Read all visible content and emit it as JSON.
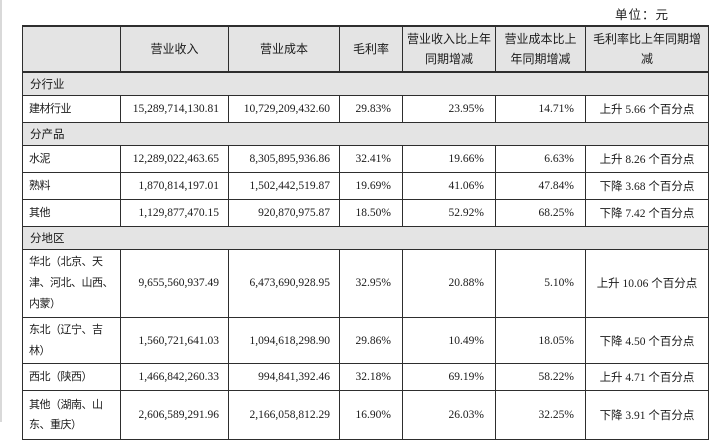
{
  "unit_label": "单位：元",
  "table": {
    "columns": [
      {
        "key": "label",
        "label": ""
      },
      {
        "key": "revenue",
        "label": "营业收入"
      },
      {
        "key": "cost",
        "label": "营业成本"
      },
      {
        "key": "margin",
        "label": "毛利率"
      },
      {
        "key": "revenue_yoy",
        "label": "营业收入比上年同期增减"
      },
      {
        "key": "cost_yoy",
        "label": "营业成本比上年同期增减"
      },
      {
        "key": "margin_yoy",
        "label": "毛利率比上年同期增减"
      }
    ],
    "rows": [
      {
        "type": "section",
        "label": "分行业"
      },
      {
        "type": "data",
        "label": "建材行业",
        "values": [
          "15,289,714,130.81",
          "10,729,209,432.60",
          "29.83%",
          "23.95%",
          "14.71%",
          "上升 5.66 个百分点"
        ]
      },
      {
        "type": "section",
        "label": "分产品"
      },
      {
        "type": "data",
        "label": "水泥",
        "values": [
          "12,289,022,463.65",
          "8,305,895,936.86",
          "32.41%",
          "19.66%",
          "6.63%",
          "上升 8.26 个百分点"
        ]
      },
      {
        "type": "data",
        "label": "熟料",
        "values": [
          "1,870,814,197.01",
          "1,502,442,519.87",
          "19.69%",
          "41.06%",
          "47.84%",
          "下降 3.68 个百分点"
        ]
      },
      {
        "type": "data",
        "label": "其他",
        "values": [
          "1,129,877,470.15",
          "920,870,975.87",
          "18.50%",
          "52.92%",
          "68.25%",
          "下降 7.42 个百分点"
        ]
      },
      {
        "type": "section",
        "label": "分地区"
      },
      {
        "type": "data",
        "tall": true,
        "label": "华北（北京、天津、河北、山西、内蒙）",
        "values": [
          "9,655,560,937.49",
          "6,473,690,928.95",
          "32.95%",
          "20.88%",
          "5.10%",
          "上升 10.06 个百分点"
        ]
      },
      {
        "type": "data",
        "label": "东北（辽宁、吉林）",
        "values": [
          "1,560,721,641.03",
          "1,094,618,298.90",
          "29.86%",
          "10.49%",
          "18.05%",
          "下降 4.50 个百分点"
        ]
      },
      {
        "type": "data",
        "label": "西北（陕西）",
        "values": [
          "1,466,842,260.33",
          "994,841,392.46",
          "32.18%",
          "69.19%",
          "58.22%",
          "上升 4.71 个百分点"
        ]
      },
      {
        "type": "data",
        "tall": true,
        "label": "其他（湖南、山东、重庆）",
        "values": [
          "2,606,589,291.96",
          "2,166,058,812.29",
          "16.90%",
          "26.03%",
          "32.25%",
          "下降 3.91 个百分点"
        ]
      }
    ]
  }
}
